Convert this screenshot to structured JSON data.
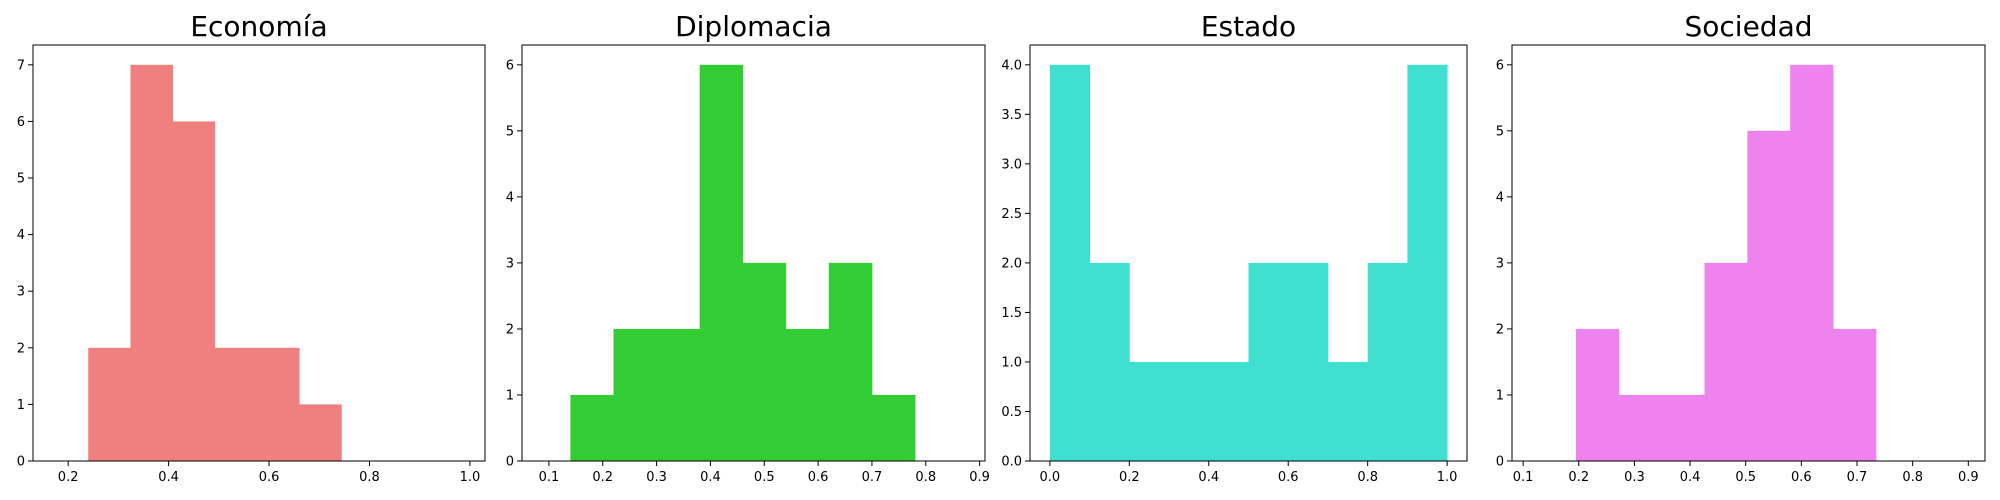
{
  "chart_data": [
    {
      "type": "bar",
      "title": "Economía",
      "color": "#F08080",
      "xlim": [
        0.13,
        1.03
      ],
      "ylim": [
        0,
        7.35
      ],
      "xticks": [
        0.2,
        0.4,
        0.6,
        0.8,
        1.0
      ],
      "xtick_labels": [
        "0.2",
        "0.4",
        "0.6",
        "0.8",
        "1.0"
      ],
      "yticks": [
        0,
        1,
        2,
        3,
        4,
        5,
        6,
        7
      ],
      "ytick_labels": [
        "0",
        "1",
        "2",
        "3",
        "4",
        "5",
        "6",
        "7"
      ],
      "bin_edges": [
        0.24,
        0.324,
        0.408,
        0.492,
        0.576,
        0.66,
        0.744
      ],
      "values": [
        2,
        7,
        6,
        2,
        2,
        1
      ]
    },
    {
      "type": "bar",
      "title": "Diplomacia",
      "color": "#32CD32",
      "xlim": [
        0.05,
        0.91
      ],
      "ylim": [
        0,
        6.3
      ],
      "xticks": [
        0.1,
        0.2,
        0.3,
        0.4,
        0.5,
        0.6,
        0.7,
        0.8,
        0.9
      ],
      "xtick_labels": [
        "0.1",
        "0.2",
        "0.3",
        "0.4",
        "0.5",
        "0.6",
        "0.7",
        "0.8",
        "0.9"
      ],
      "yticks": [
        0,
        1,
        2,
        3,
        4,
        5,
        6
      ],
      "ytick_labels": [
        "0",
        "1",
        "2",
        "3",
        "4",
        "5",
        "6"
      ],
      "bin_edges": [
        0.14,
        0.22,
        0.3,
        0.38,
        0.46,
        0.54,
        0.62,
        0.7,
        0.78
      ],
      "values": [
        1,
        2,
        2,
        6,
        3,
        2,
        3,
        1
      ]
    },
    {
      "type": "bar",
      "title": "Estado",
      "color": "#40E0D0",
      "xlim": [
        -0.05,
        1.05
      ],
      "ylim": [
        0,
        4.2
      ],
      "xticks": [
        0.0,
        0.2,
        0.4,
        0.6,
        0.8,
        1.0
      ],
      "xtick_labels": [
        "0.0",
        "0.2",
        "0.4",
        "0.6",
        "0.8",
        "1.0"
      ],
      "yticks": [
        0,
        0.5,
        1.0,
        1.5,
        2.0,
        2.5,
        3.0,
        3.5,
        4.0
      ],
      "ytick_labels": [
        "0.0",
        "0.5",
        "1.0",
        "1.5",
        "2.0",
        "2.5",
        "3.0",
        "3.5",
        "4.0"
      ],
      "bin_edges": [
        0.0,
        0.1,
        0.2,
        0.3,
        0.4,
        0.5,
        0.6,
        0.7,
        0.8,
        0.9,
        1.0
      ],
      "values": [
        4,
        2,
        1,
        1,
        1,
        2,
        2,
        1,
        2,
        4
      ]
    },
    {
      "type": "bar",
      "title": "Sociedad",
      "color": "#EE82EE",
      "xlim": [
        0.08,
        0.93
      ],
      "ylim": [
        0,
        6.3
      ],
      "xticks": [
        0.1,
        0.2,
        0.3,
        0.4,
        0.5,
        0.6,
        0.7,
        0.8,
        0.9
      ],
      "xtick_labels": [
        "0.1",
        "0.2",
        "0.3",
        "0.4",
        "0.5",
        "0.6",
        "0.7",
        "0.8",
        "0.9"
      ],
      "yticks": [
        0,
        1,
        2,
        3,
        4,
        5,
        6
      ],
      "ytick_labels": [
        "0",
        "1",
        "2",
        "3",
        "4",
        "5",
        "6"
      ],
      "bin_edges": [
        0.195,
        0.272,
        0.349,
        0.426,
        0.503,
        0.58,
        0.657,
        0.734
      ],
      "values": [
        2,
        1,
        1,
        3,
        5,
        6,
        2
      ]
    }
  ]
}
